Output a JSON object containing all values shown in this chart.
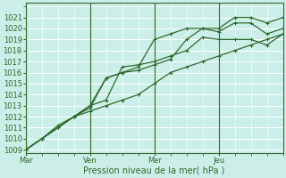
{
  "xlabel": "Pression niveau de la mer( hPa )",
  "bg_color": "#cceee8",
  "grid_color": "#ffffff",
  "line_color": "#2d6a2d",
  "y_min": 1009,
  "y_max": 1022,
  "y_ticks": [
    1009,
    1010,
    1011,
    1012,
    1013,
    1014,
    1015,
    1016,
    1017,
    1018,
    1019,
    1020,
    1021
  ],
  "x_tick_labels": [
    "Mar",
    "Ven",
    "Mer",
    "Jeu"
  ],
  "x_tick_positions": [
    0,
    24,
    48,
    72
  ],
  "x_max": 96,
  "series1": {
    "x": [
      0,
      6,
      12,
      18,
      24,
      30,
      36,
      42,
      48,
      54,
      60,
      66,
      72,
      78,
      84,
      90,
      96
    ],
    "y": [
      1009,
      1010,
      1011,
      1012,
      1012.8,
      1015.5,
      1016,
      1016.2,
      1016.7,
      1017.2,
      1019,
      1020,
      1020,
      1021,
      1021,
      1020.5,
      1021
    ]
  },
  "series2": {
    "x": [
      0,
      6,
      12,
      18,
      24,
      30,
      36,
      42,
      48,
      54,
      60,
      66,
      72,
      78,
      84,
      90,
      96
    ],
    "y": [
      1009,
      1010,
      1011.2,
      1012,
      1013,
      1015.5,
      1016,
      1016.5,
      1019,
      1019.5,
      1020,
      1020,
      1019.7,
      1020.5,
      1020.5,
      1019.5,
      1020
    ]
  },
  "series3": {
    "x": [
      0,
      6,
      12,
      18,
      24,
      30,
      36,
      42,
      48,
      54,
      60,
      66,
      72,
      78,
      84,
      90,
      96
    ],
    "y": [
      1009,
      1010,
      1011,
      1012,
      1013,
      1013.5,
      1016.5,
      1016.7,
      1017,
      1017.5,
      1018,
      1019.2,
      1019,
      1019,
      1019,
      1018.5,
      1019.5
    ]
  },
  "series4": {
    "x": [
      0,
      6,
      12,
      18,
      24,
      30,
      36,
      42,
      48,
      54,
      60,
      66,
      72,
      78,
      84,
      90,
      96
    ],
    "y": [
      1009,
      1010,
      1011,
      1012,
      1012.5,
      1013,
      1013.5,
      1014,
      1015,
      1016,
      1016.5,
      1017,
      1017.5,
      1018,
      1018.5,
      1019,
      1019.5
    ]
  },
  "xlabel_fontsize": 7,
  "tick_fontsize": 6,
  "linewidth": 0.9,
  "markersize": 3.0
}
